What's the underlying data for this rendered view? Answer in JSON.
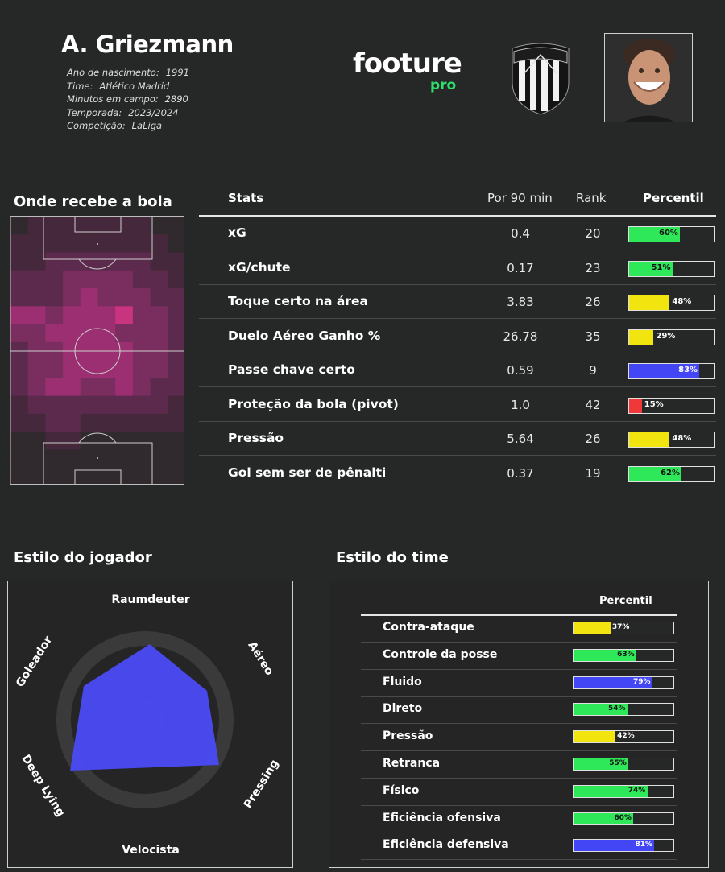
{
  "player": {
    "name": "A. Griezmann",
    "info": [
      {
        "label": "Ano de nascimento:",
        "value": "1991"
      },
      {
        "label": "Time:",
        "value": "Atlético Madrid"
      },
      {
        "label": "Minutos em campo:",
        "value": "2890"
      },
      {
        "label": "Temporada:",
        "value": "2023/2024"
      },
      {
        "label": "Competição:",
        "value": "LaLiga"
      }
    ]
  },
  "brand": {
    "main": "footure",
    "sub": "pro"
  },
  "heatmap": {
    "title": "Onde recebe a bola"
  },
  "stats": {
    "headers": {
      "stat": "Stats",
      "per90": "Por 90 min",
      "rank": "Rank",
      "pct": "Percentil"
    },
    "rows": [
      {
        "name": "xG",
        "per90": "0.4",
        "rank": "20",
        "pct": 60,
        "label": "60%",
        "color": "#2fe85a"
      },
      {
        "name": "xG/chute",
        "per90": "0.17",
        "rank": "23",
        "pct": 51,
        "label": "51%",
        "color": "#2fe85a"
      },
      {
        "name": "Toque certo na área",
        "per90": "3.83",
        "rank": "26",
        "pct": 48,
        "label": "48%",
        "color": "#f2e40f"
      },
      {
        "name": "Duelo Aéreo Ganho %",
        "per90": "26.78",
        "rank": "35",
        "pct": 29,
        "label": "29%",
        "color": "#f2e40f"
      },
      {
        "name": "Passe chave certo",
        "per90": "0.59",
        "rank": "9",
        "pct": 83,
        "label": "83%",
        "color": "#4246f5"
      },
      {
        "name": "Proteção da bola (pivot)",
        "per90": "1.0",
        "rank": "42",
        "pct": 15,
        "label": "15%",
        "color": "#f0373a"
      },
      {
        "name": "Pressão",
        "per90": "5.64",
        "rank": "26",
        "pct": 48,
        "label": "48%",
        "color": "#f2e40f"
      },
      {
        "name": "Gol sem ser de pênalti",
        "per90": "0.37",
        "rank": "19",
        "pct": 62,
        "label": "62%",
        "color": "#2fe85a"
      }
    ]
  },
  "player_style": {
    "title": "Estilo do jogador",
    "axes": [
      "Raumdeuter",
      "Aéreo",
      "Pressing",
      "Velocista",
      "Deep Lying",
      "Goleador"
    ],
    "color": "#4a4af5"
  },
  "team_style": {
    "title": "Estilo do time",
    "header": "Percentil",
    "rows": [
      {
        "name": "Contra-ataque",
        "pct": 37,
        "label": "37%",
        "color": "#f2e40f"
      },
      {
        "name": "Controle da posse",
        "pct": 63,
        "label": "63%",
        "color": "#2fe85a"
      },
      {
        "name": "Fluido",
        "pct": 79,
        "label": "79%",
        "color": "#4246f5"
      },
      {
        "name": "Direto",
        "pct": 54,
        "label": "54%",
        "color": "#2fe85a"
      },
      {
        "name": "Pressão",
        "pct": 42,
        "label": "42%",
        "color": "#f2e40f"
      },
      {
        "name": "Retranca",
        "pct": 55,
        "label": "55%",
        "color": "#2fe85a"
      },
      {
        "name": "Físico",
        "pct": 74,
        "label": "74%",
        "color": "#2fe85a"
      },
      {
        "name": "Eficiência ofensiva",
        "pct": 60,
        "label": "60%",
        "color": "#2fe85a"
      },
      {
        "name": "Eficiência defensiva",
        "pct": 81,
        "label": "81%",
        "color": "#4246f5"
      }
    ]
  }
}
